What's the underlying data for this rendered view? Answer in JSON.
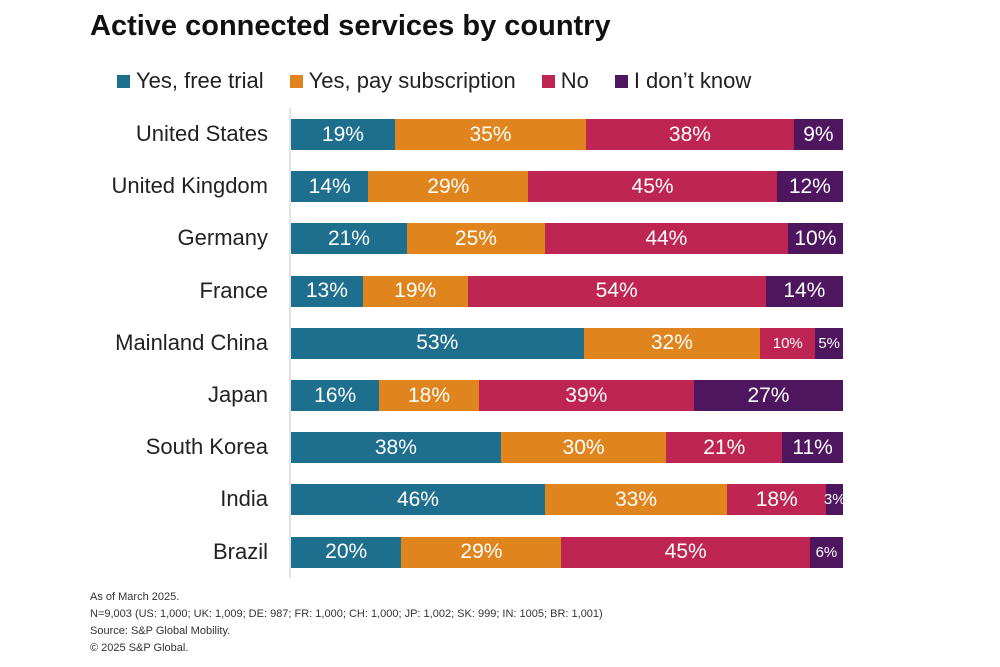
{
  "chart_data": {
    "type": "bar",
    "orientation": "horizontal",
    "stacked": true,
    "title": "Active connected services by country",
    "legend_position": "top",
    "categories": [
      "United States",
      "United Kingdom",
      "Germany",
      "France",
      "Mainland China",
      "Japan",
      "South Korea",
      "India",
      "Brazil"
    ],
    "series": [
      {
        "name": "Yes, free trial",
        "color": "#1e6e8e",
        "values": [
          19,
          14,
          21,
          13,
          53,
          16,
          38,
          46,
          20
        ],
        "labels": [
          "19%",
          "14%",
          "21%",
          "13%",
          "53%",
          "16%",
          "38%",
          "46%",
          "20%"
        ]
      },
      {
        "name": "Yes, pay subscription",
        "color": "#e0841e",
        "values": [
          35,
          29,
          25,
          19,
          32,
          18,
          30,
          33,
          29
        ],
        "labels": [
          "35%",
          "29%",
          "25%",
          "19%",
          "32%",
          "18%",
          "30%",
          "33%",
          "29%"
        ]
      },
      {
        "name": "No",
        "color": "#bf2553",
        "values": [
          38,
          45,
          44,
          54,
          10,
          39,
          21,
          18,
          45
        ],
        "labels": [
          "38%",
          "45%",
          "44%",
          "54%",
          "10%",
          "39%",
          "21%",
          "18%",
          "45%"
        ]
      },
      {
        "name": "I don't know",
        "color": "#4f1660",
        "values": [
          9,
          12,
          10,
          14,
          5,
          27,
          11,
          3,
          6
        ],
        "labels": [
          "9%",
          "12%",
          "10%",
          "14%",
          "5%",
          "27%",
          "11%",
          "3%",
          "6%"
        ]
      }
    ],
    "xlabel": "",
    "ylabel": "",
    "xlim": [
      0,
      100
    ]
  },
  "legend": [
    {
      "label": "Yes, free trial",
      "color": "#1e6e8e"
    },
    {
      "label": "Yes, pay subscription",
      "color": "#e0841e"
    },
    {
      "label": "No",
      "color": "#bf2553"
    },
    {
      "label": "I don’t know",
      "color": "#4f1660"
    }
  ],
  "notes": [
    "As of March 2025.",
    "N=9,003 (US: 1,000; UK: 1,009; DE: 987; FR: 1,000; CH: 1,000; JP: 1,002; SK: 999; IN: 1005; BR: 1,001)",
    "Source: S&P Global Mobility.",
    "© 2025 S&P Global."
  ]
}
